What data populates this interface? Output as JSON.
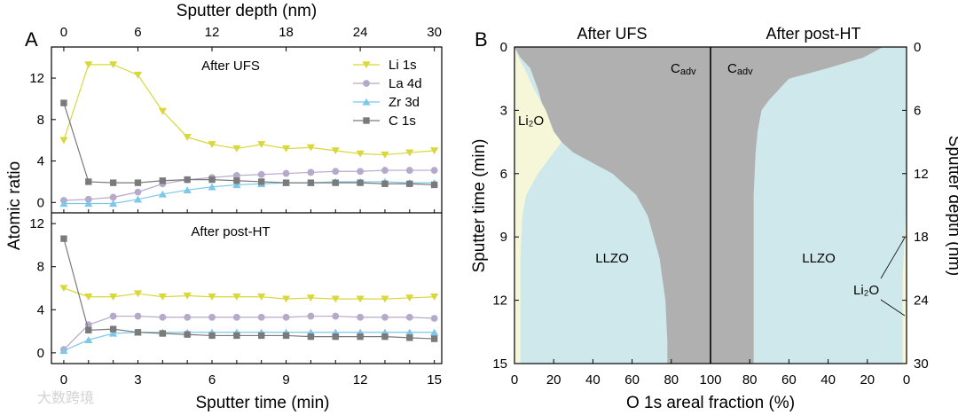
{
  "colors": {
    "li": "#d8d83a",
    "la": "#b6a9c9",
    "zr": "#7cc7ea",
    "c": "#7a7a7a",
    "li2o_fill": "#f6f7d9",
    "llzo_fill": "#cfe8eb",
    "cadv_fill": "#b0b0b0",
    "frame": "#000000"
  },
  "panel_a": {
    "label": "A",
    "top_axis_label": "Sputter depth (nm)",
    "top_ticks": [
      "0",
      "6",
      "12",
      "18",
      "24",
      "30"
    ],
    "bottom_axis_label": "Sputter time (min)",
    "bottom_ticks": [
      "0",
      "3",
      "6",
      "9",
      "12",
      "15"
    ],
    "y_label": "Atomic ratio",
    "watermark": "大数跨境"
  },
  "panel_b": {
    "label": "B",
    "y_left_label": "Sputter time (min)",
    "y_right_label": "Sputter depth (nm)",
    "x_label": "O 1s areal fraction (%)",
    "left_title": "After UFS",
    "right_title": "After post-HT",
    "left_y_ticks": [
      "0",
      "3",
      "6",
      "9",
      "12",
      "15"
    ],
    "right_y_ticks": [
      "0",
      "6",
      "12",
      "18",
      "24",
      "30"
    ],
    "x_ticks": [
      "0",
      "20",
      "40",
      "60",
      "80",
      "100",
      "80",
      "60",
      "40",
      "20",
      "0"
    ],
    "labels": {
      "cadv_left": "C",
      "cadv_right": "C",
      "cadv_sub": "adv",
      "li2o_left": "Li₂O",
      "llzo_left": "LLZO",
      "llzo_right": "LLZO",
      "li2o_right": "Li₂O"
    }
  },
  "chart_data": [
    {
      "type": "line",
      "title": "After UFS",
      "xlabel": "Sputter time (min)",
      "ylabel": "Atomic ratio",
      "xlim": [
        -0.5,
        15.3
      ],
      "ylim": [
        -1,
        15
      ],
      "yticks": [
        "0",
        "4",
        "8",
        "12"
      ],
      "x": [
        0,
        1,
        2,
        3,
        4,
        5,
        6,
        7,
        8,
        9,
        10,
        11,
        12,
        13,
        14,
        15
      ],
      "legend_position": "top-right",
      "series": [
        {
          "name": "Li 1s",
          "marker": "triangle-down",
          "values": [
            6.0,
            13.3,
            13.3,
            12.3,
            8.8,
            6.3,
            5.6,
            5.2,
            5.6,
            5.2,
            5.3,
            5.0,
            4.7,
            4.6,
            4.8,
            5.0
          ]
        },
        {
          "name": "La 4d",
          "marker": "circle",
          "values": [
            0.2,
            0.3,
            0.5,
            1.0,
            1.8,
            2.2,
            2.4,
            2.6,
            2.7,
            2.8,
            2.9,
            3.0,
            3.0,
            3.1,
            3.1,
            3.1
          ]
        },
        {
          "name": "Zr 3d",
          "marker": "triangle-up",
          "values": [
            -0.1,
            -0.1,
            -0.1,
            0.3,
            0.8,
            1.2,
            1.5,
            1.7,
            1.8,
            1.9,
            1.9,
            2.0,
            2.0,
            2.0,
            1.9,
            1.9
          ]
        },
        {
          "name": "C 1s",
          "marker": "square",
          "values": [
            9.6,
            2.0,
            1.9,
            1.9,
            2.1,
            2.2,
            2.2,
            2.1,
            2.0,
            1.9,
            1.9,
            1.9,
            1.9,
            1.8,
            1.8,
            1.7
          ]
        }
      ]
    },
    {
      "type": "line",
      "title": "After post-HT",
      "xlabel": "Sputter time (min)",
      "ylabel": "Atomic ratio",
      "xlim": [
        -0.5,
        15.3
      ],
      "ylim": [
        -1,
        13
      ],
      "yticks": [
        "0",
        "4",
        "8",
        "12"
      ],
      "x": [
        0,
        1,
        2,
        3,
        4,
        5,
        6,
        7,
        8,
        9,
        10,
        11,
        12,
        13,
        14,
        15
      ],
      "series": [
        {
          "name": "Li 1s",
          "marker": "triangle-down",
          "values": [
            6.0,
            5.2,
            5.2,
            5.5,
            5.2,
            5.3,
            5.2,
            5.2,
            5.2,
            5.0,
            5.1,
            5.0,
            5.0,
            5.0,
            5.1,
            5.2
          ]
        },
        {
          "name": "La 4d",
          "marker": "circle",
          "values": [
            0.3,
            2.6,
            3.4,
            3.4,
            3.3,
            3.3,
            3.3,
            3.3,
            3.3,
            3.3,
            3.4,
            3.4,
            3.3,
            3.3,
            3.3,
            3.2
          ]
        },
        {
          "name": "Zr 3d",
          "marker": "triangle-up",
          "values": [
            0.2,
            1.2,
            1.8,
            1.9,
            1.9,
            1.9,
            1.9,
            1.9,
            1.9,
            1.9,
            1.9,
            1.9,
            1.9,
            1.9,
            1.9,
            1.9
          ]
        },
        {
          "name": "C 1s",
          "marker": "square",
          "values": [
            10.6,
            2.1,
            2.2,
            1.9,
            1.8,
            1.7,
            1.6,
            1.6,
            1.6,
            1.6,
            1.5,
            1.5,
            1.5,
            1.5,
            1.4,
            1.3
          ]
        }
      ]
    },
    {
      "type": "area",
      "title": "After UFS",
      "xlabel": "O 1s areal fraction (%)",
      "ylabel": "Sputter time (min)",
      "xlim": [
        0,
        100
      ],
      "ylim": [
        0,
        15
      ],
      "y_inverted": true,
      "stack_order": [
        "Li2O",
        "LLZO",
        "Cadv"
      ],
      "time": [
        0,
        0.5,
        1,
        2,
        3,
        4,
        4.5,
        5,
        6,
        7,
        8,
        10,
        12,
        14,
        15
      ],
      "li2o_boundary": [
        0,
        2,
        5,
        10,
        16,
        20,
        24,
        20,
        12,
        6,
        4,
        3,
        3,
        3,
        3
      ],
      "llzo_boundary": [
        0,
        3,
        8,
        12,
        15,
        20,
        24,
        30,
        50,
        62,
        68,
        74,
        77,
        78,
        78
      ]
    },
    {
      "type": "area",
      "title": "After post-HT",
      "xlabel": "O 1s areal fraction (%)",
      "ylabel": "Sputter depth (nm)",
      "xlim": [
        100,
        0
      ],
      "ylim": [
        0,
        30
      ],
      "y_inverted": true,
      "stack_order": [
        "Li2O",
        "LLZO",
        "Cadv"
      ],
      "depth": [
        0,
        1,
        2,
        3,
        5,
        6,
        8,
        10,
        14,
        18,
        22,
        26,
        30
      ],
      "llzo_boundary": [
        12,
        22,
        40,
        60,
        70,
        74,
        76,
        77,
        78,
        78,
        78,
        78,
        78
      ],
      "li2o_boundary": [
        0,
        0,
        0,
        0,
        0,
        0,
        0,
        0,
        0,
        1,
        2,
        2,
        2
      ]
    }
  ]
}
